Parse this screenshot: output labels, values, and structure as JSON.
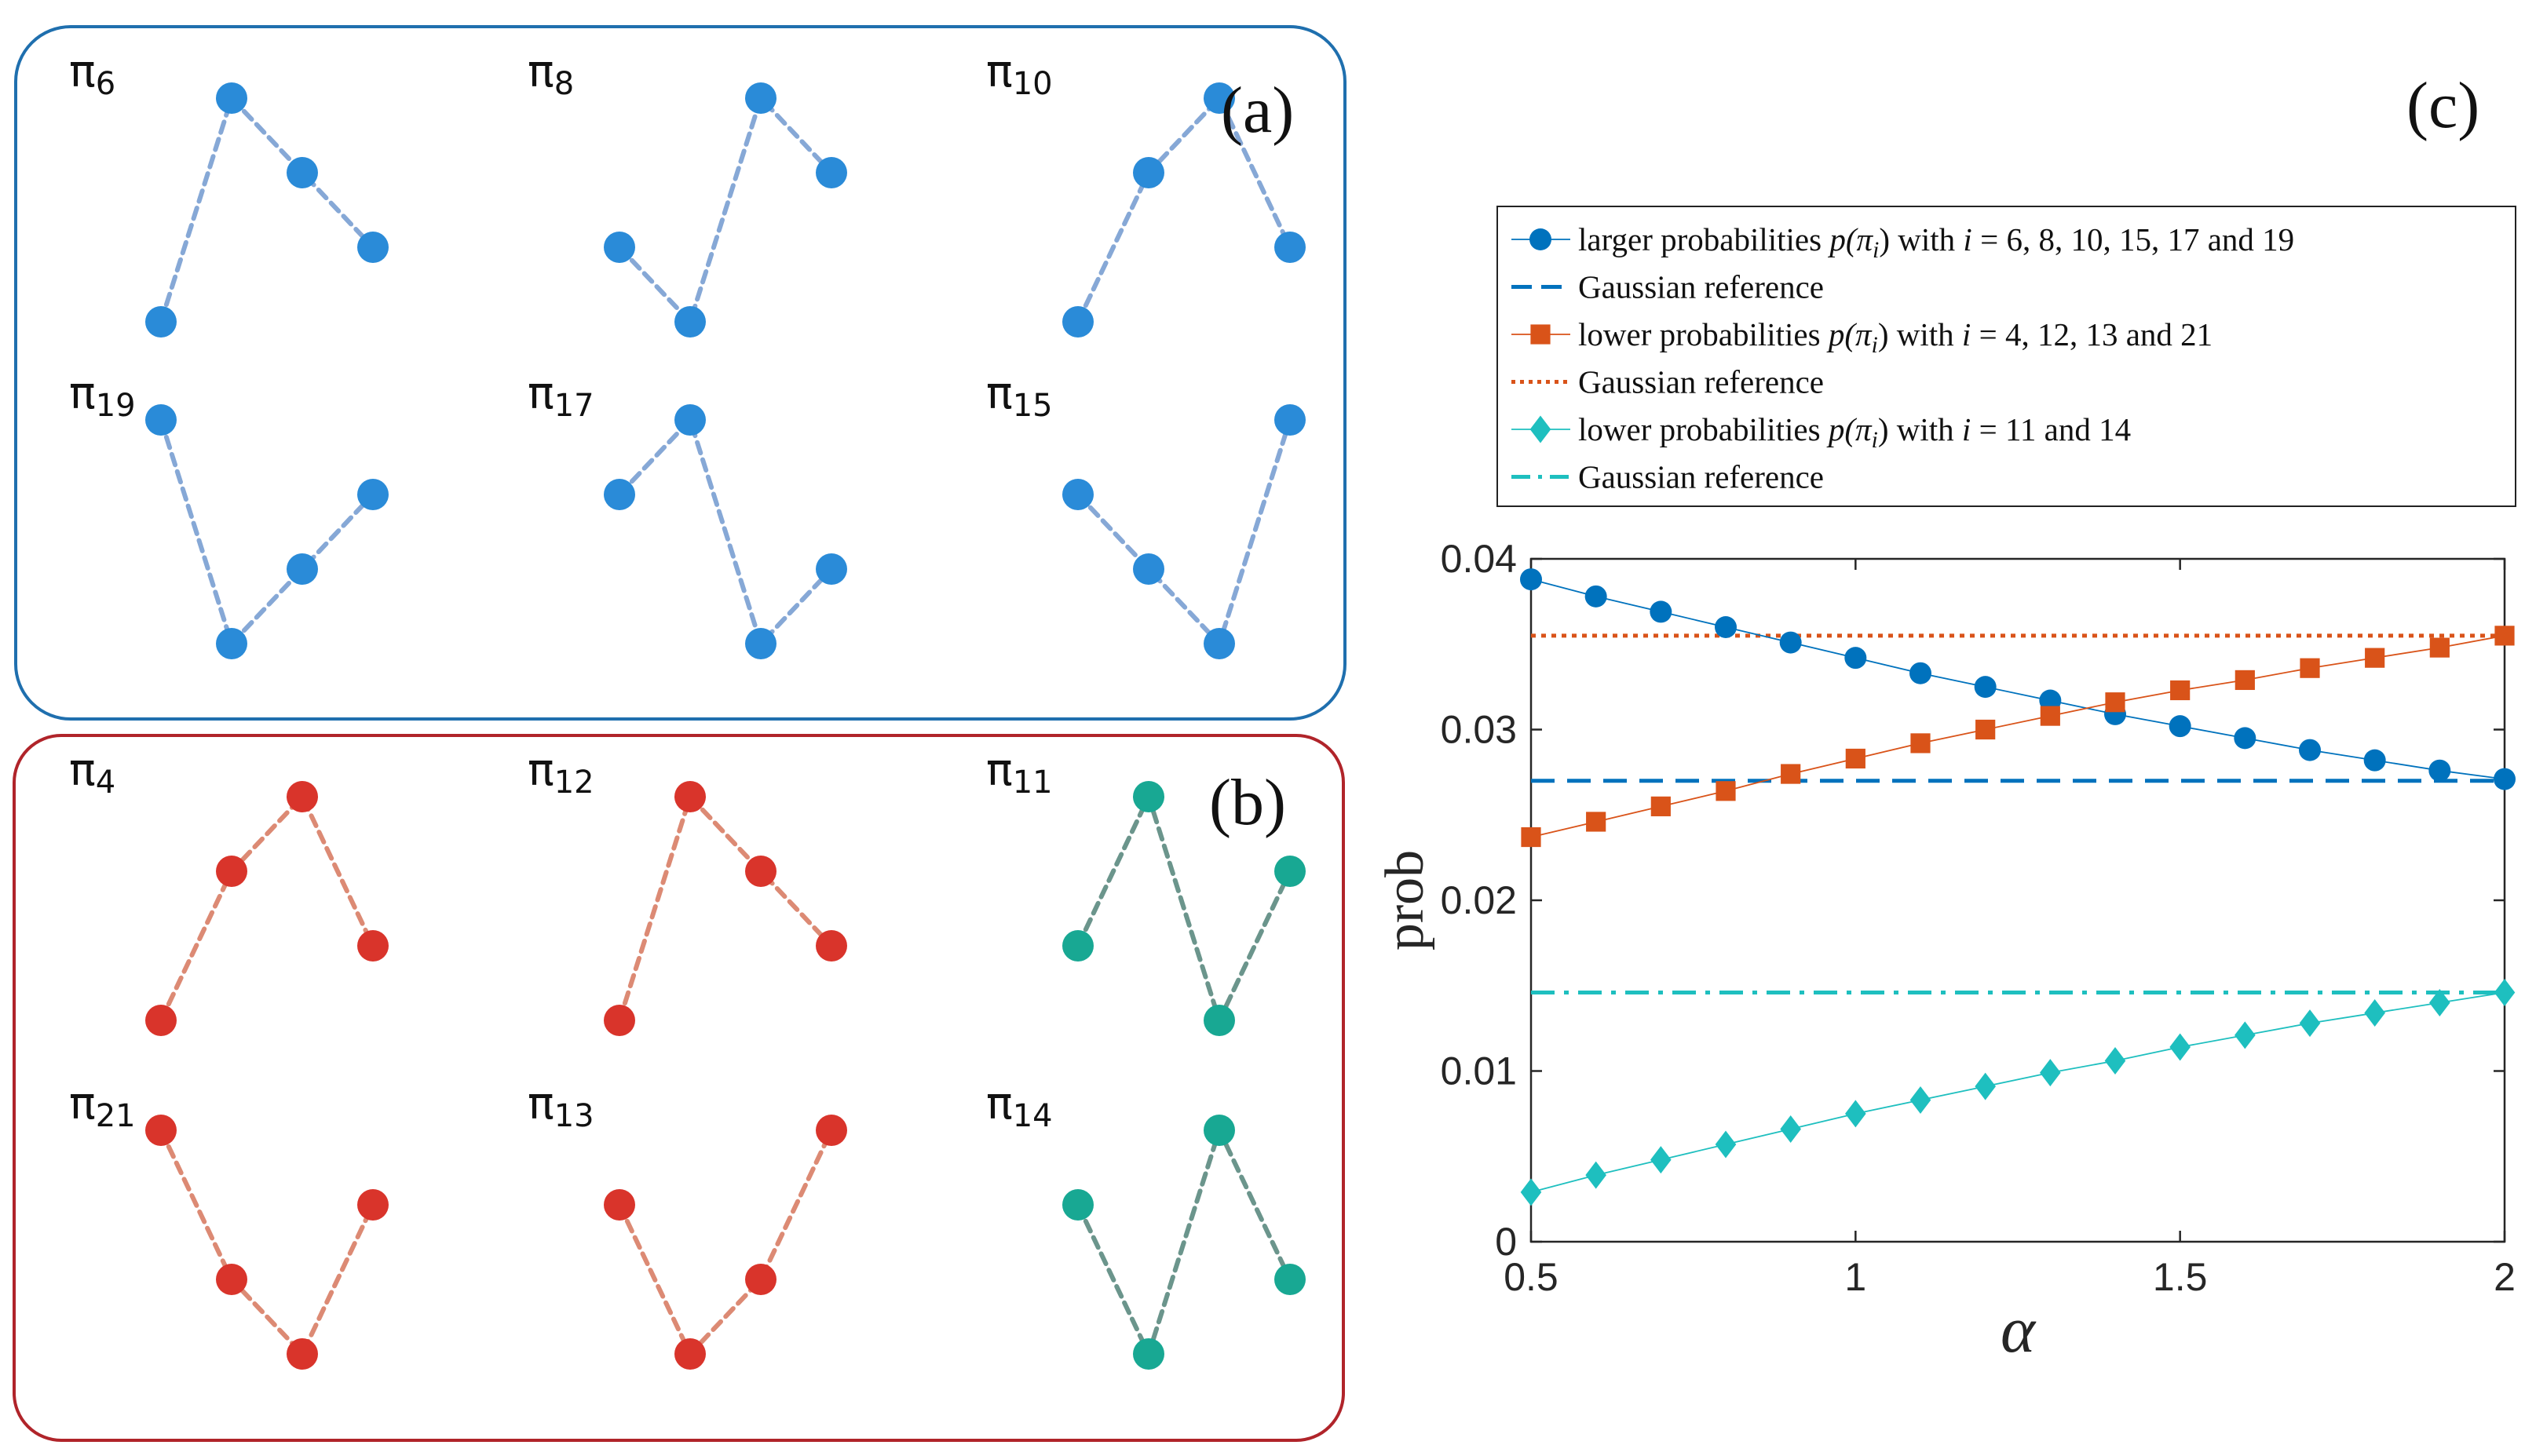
{
  "panels": {
    "a": {
      "label": "(a)",
      "frame_color": "#1f6fae",
      "node_color": "#2a8bd8",
      "line_color": "#86a8d6",
      "patterns": [
        {
          "name": "π",
          "sub": "6",
          "heights": [
            1,
            4,
            3,
            2
          ]
        },
        {
          "name": "π",
          "sub": "8",
          "heights": [
            2,
            1,
            4,
            3
          ]
        },
        {
          "name": "π",
          "sub": "10",
          "heights": [
            1,
            3,
            4,
            2
          ]
        },
        {
          "name": "π",
          "sub": "19",
          "heights": [
            4,
            1,
            2,
            3
          ]
        },
        {
          "name": "π",
          "sub": "17",
          "heights": [
            3,
            4,
            1,
            2
          ]
        },
        {
          "name": "π",
          "sub": "15",
          "heights": [
            3,
            2,
            1,
            4
          ]
        }
      ]
    },
    "b": {
      "label": "(b)",
      "frame_color": "#b0242a",
      "red_node": "#d9342b",
      "red_line": "#dc8a74",
      "teal_node": "#18a893",
      "teal_line": "#6b958c",
      "patterns": [
        {
          "name": "π",
          "sub": "4",
          "heights": [
            1,
            3,
            4,
            2
          ],
          "color": "red"
        },
        {
          "name": "π",
          "sub": "12",
          "heights": [
            1,
            4,
            3,
            2
          ],
          "color": "red"
        },
        {
          "name": "π",
          "sub": "11",
          "heights": [
            2,
            4,
            1,
            3
          ],
          "color": "teal"
        },
        {
          "name": "π",
          "sub": "21",
          "heights": [
            4,
            2,
            1,
            3
          ],
          "color": "red"
        },
        {
          "name": "π",
          "sub": "13",
          "heights": [
            3,
            1,
            2,
            4
          ],
          "color": "red"
        },
        {
          "name": "π",
          "sub": "14",
          "heights": [
            3,
            1,
            4,
            2
          ],
          "color": "teal"
        }
      ]
    },
    "c": {
      "label": "(c)"
    }
  },
  "legend": [
    {
      "marker": "circle",
      "line": "solid",
      "color": "#0072bd",
      "prefix": "larger probabilities ",
      "math": "p(π",
      "mathsub": "i",
      "mathend": ")",
      "suffix": " with ",
      "var": "i",
      "rest": " = 6, 8, 10, 15, 17 and 19"
    },
    {
      "marker": "none",
      "line": "dashed",
      "color": "#0072bd",
      "prefix": "Gaussian reference"
    },
    {
      "marker": "square",
      "line": "solid",
      "color": "#d95319",
      "prefix": "lower probabilities ",
      "math": "p(π",
      "mathsub": "i",
      "mathend": ")",
      "suffix": " with ",
      "var": "i",
      "rest": " = 4, 12, 13 and 21"
    },
    {
      "marker": "none",
      "line": "dotted",
      "color": "#d95319",
      "prefix": "Gaussian reference"
    },
    {
      "marker": "diamond",
      "line": "solid",
      "color": "#1ebfbf",
      "prefix": "lower probabilities ",
      "math": "p(π",
      "mathsub": "i",
      "mathend": ")",
      "suffix": " with ",
      "var": "i",
      "rest": " = 11 and 14"
    },
    {
      "marker": "none",
      "line": "dashdot",
      "color": "#1ebfbf",
      "prefix": "Gaussian reference"
    }
  ],
  "chart_data": {
    "type": "line",
    "xlabel": "α",
    "ylabel": "prob",
    "xlim": [
      0.5,
      2
    ],
    "ylim": [
      0,
      0.04
    ],
    "xticks": [
      0.5,
      1,
      1.5,
      2
    ],
    "xticklabels": [
      "0.5",
      "1",
      "1.5",
      "2"
    ],
    "yticks": [
      0,
      0.01,
      0.02,
      0.03,
      0.04
    ],
    "yticklabels": [
      "0",
      "0.01",
      "0.02",
      "0.03",
      "0.04"
    ],
    "grid": false,
    "legend_position": "above",
    "x": [
      0.5,
      0.6,
      0.7,
      0.8,
      0.9,
      1.0,
      1.1,
      1.2,
      1.3,
      1.4,
      1.5,
      1.6,
      1.7,
      1.8,
      1.9,
      2.0
    ],
    "series": [
      {
        "name": "larger probabilities p(πi) with i = 6, 8, 10, 15, 17 and 19",
        "color": "#0072bd",
        "marker": "circle",
        "values": [
          0.0388,
          0.0378,
          0.0369,
          0.036,
          0.0351,
          0.0342,
          0.0333,
          0.0325,
          0.0317,
          0.0309,
          0.0302,
          0.0295,
          0.0288,
          0.0282,
          0.0276,
          0.0271
        ]
      },
      {
        "name": "lower probabilities p(πi) with i = 4, 12, 13 and 21",
        "color": "#d95319",
        "marker": "square",
        "values": [
          0.0237,
          0.0246,
          0.0255,
          0.0264,
          0.0274,
          0.0283,
          0.0292,
          0.03,
          0.0308,
          0.0316,
          0.0323,
          0.0329,
          0.0336,
          0.0342,
          0.0348,
          0.0355
        ]
      },
      {
        "name": "lower probabilities p(πi) with i = 11 and 14",
        "color": "#1ebfbf",
        "marker": "diamond",
        "values": [
          0.0029,
          0.0039,
          0.0048,
          0.0057,
          0.0066,
          0.0075,
          0.0083,
          0.0091,
          0.0099,
          0.0106,
          0.0114,
          0.0121,
          0.0128,
          0.0134,
          0.014,
          0.0146
        ]
      }
    ],
    "references": [
      {
        "name": "Gaussian reference",
        "value": 0.027,
        "color": "#0072bd",
        "style": "dashed"
      },
      {
        "name": "Gaussian reference",
        "value": 0.0355,
        "color": "#d95319",
        "style": "dotted"
      },
      {
        "name": "Gaussian reference",
        "value": 0.0146,
        "color": "#1ebfbf",
        "style": "dashdot"
      }
    ]
  }
}
